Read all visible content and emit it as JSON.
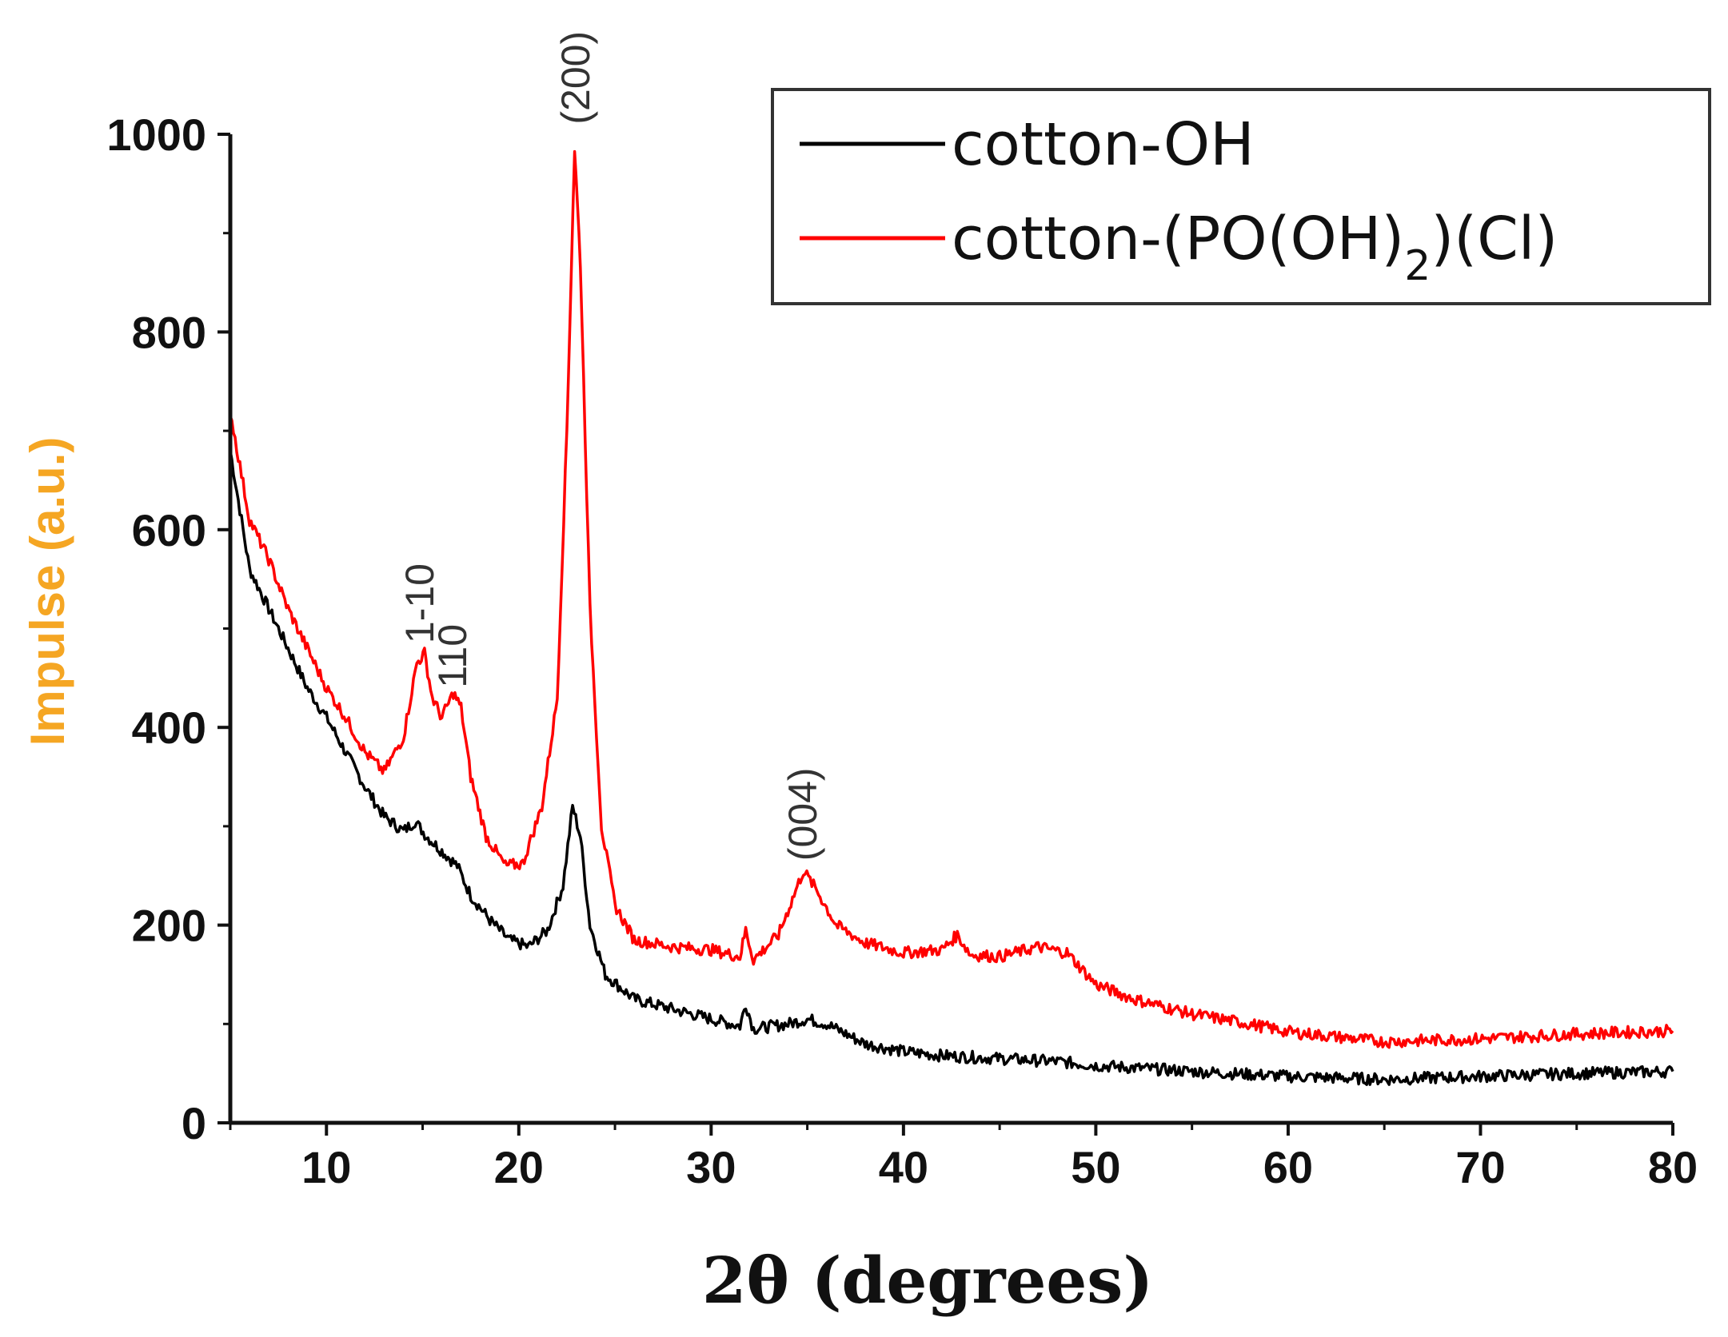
{
  "chart_data": {
    "type": "line",
    "xlabel": "2θ (degrees)",
    "ylabel": "Impulse (a.u.)",
    "ylabel_color": "#F5A623",
    "xlim": [
      5,
      80
    ],
    "ylim": [
      0,
      1000
    ],
    "x_ticks": [
      10,
      20,
      30,
      40,
      50,
      60,
      70,
      80
    ],
    "y_ticks": [
      0,
      200,
      400,
      600,
      800,
      1000
    ],
    "grid": false,
    "legend_position": "top-right",
    "annotations": [
      {
        "text": "(200)",
        "x": 23.0,
        "y": 1010
      },
      {
        "text": "1-10",
        "x": 14.9,
        "y": 485
      },
      {
        "text": "110",
        "x": 16.6,
        "y": 440
      },
      {
        "text": "(004)",
        "x": 34.8,
        "y": 265
      }
    ],
    "series": [
      {
        "name": "cotton-OH",
        "color": "#000000",
        "points": [
          [
            5,
            680
          ],
          [
            6,
            560
          ],
          [
            7,
            520
          ],
          [
            8,
            480
          ],
          [
            9,
            440
          ],
          [
            10,
            410
          ],
          [
            11,
            375
          ],
          [
            12,
            340
          ],
          [
            13,
            310
          ],
          [
            14,
            295
          ],
          [
            14.6,
            305
          ],
          [
            15.2,
            290
          ],
          [
            16,
            275
          ],
          [
            16.8,
            260
          ],
          [
            17.5,
            230
          ],
          [
            18.5,
            205
          ],
          [
            19.5,
            185
          ],
          [
            20.5,
            178
          ],
          [
            21.5,
            195
          ],
          [
            22.3,
            240
          ],
          [
            22.8,
            320
          ],
          [
            23.2,
            290
          ],
          [
            23.7,
            200
          ],
          [
            24.5,
            150
          ],
          [
            26,
            125
          ],
          [
            28,
            115
          ],
          [
            30,
            105
          ],
          [
            31.5,
            98
          ],
          [
            31.8,
            120
          ],
          [
            32.2,
            95
          ],
          [
            34,
            100
          ],
          [
            35,
            105
          ],
          [
            36,
            100
          ],
          [
            37,
            90
          ],
          [
            38,
            80
          ],
          [
            40,
            72
          ],
          [
            42,
            68
          ],
          [
            45,
            65
          ],
          [
            48,
            62
          ],
          [
            50,
            58
          ],
          [
            55,
            52
          ],
          [
            60,
            47
          ],
          [
            65,
            44
          ],
          [
            70,
            47
          ],
          [
            75,
            50
          ],
          [
            80,
            52
          ]
        ]
      },
      {
        "name": "cotton-(PO(OH)2)(Cl)",
        "color": "#FF0000",
        "points": [
          [
            5,
            720
          ],
          [
            6,
            610
          ],
          [
            7,
            570
          ],
          [
            8,
            520
          ],
          [
            9,
            480
          ],
          [
            10,
            440
          ],
          [
            11,
            410
          ],
          [
            12,
            375
          ],
          [
            13,
            355
          ],
          [
            14,
            390
          ],
          [
            14.7,
            465
          ],
          [
            15.1,
            475
          ],
          [
            15.5,
            430
          ],
          [
            16,
            410
          ],
          [
            16.6,
            435
          ],
          [
            17,
            420
          ],
          [
            17.5,
            350
          ],
          [
            18.3,
            290
          ],
          [
            19.3,
            260
          ],
          [
            20.2,
            262
          ],
          [
            21.2,
            320
          ],
          [
            22,
            430
          ],
          [
            22.5,
            700
          ],
          [
            22.9,
            985
          ],
          [
            23.2,
            870
          ],
          [
            23.7,
            520
          ],
          [
            24.3,
            300
          ],
          [
            25,
            220
          ],
          [
            26,
            185
          ],
          [
            28,
            178
          ],
          [
            30,
            175
          ],
          [
            31.5,
            168
          ],
          [
            31.8,
            195
          ],
          [
            32.2,
            165
          ],
          [
            33.5,
            190
          ],
          [
            34.8,
            255
          ],
          [
            35.5,
            235
          ],
          [
            36.5,
            200
          ],
          [
            38,
            182
          ],
          [
            40,
            172
          ],
          [
            42,
            175
          ],
          [
            42.8,
            190
          ],
          [
            43.5,
            170
          ],
          [
            45,
            168
          ],
          [
            47,
            178
          ],
          [
            48.5,
            172
          ],
          [
            50,
            140
          ],
          [
            52,
            125
          ],
          [
            55,
            110
          ],
          [
            58,
            100
          ],
          [
            60,
            92
          ],
          [
            65,
            82
          ],
          [
            70,
            85
          ],
          [
            75,
            90
          ],
          [
            80,
            93
          ]
        ]
      }
    ]
  }
}
